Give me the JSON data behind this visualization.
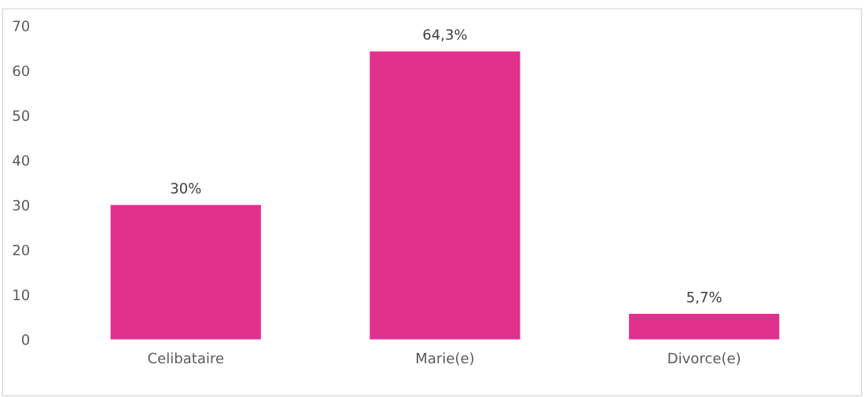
{
  "chart_data": {
    "type": "bar",
    "categories": [
      "Celibataire",
      "Marie(e)",
      "Divorce(e)"
    ],
    "values": [
      30,
      64.3,
      5.7
    ],
    "value_labels": [
      "30%",
      "64,3%",
      "5,7%"
    ],
    "color": "#e2308f",
    "ylim": [
      0,
      70
    ],
    "yticks": [
      0,
      10,
      20,
      30,
      40,
      50,
      60,
      70
    ],
    "grid": false
  }
}
